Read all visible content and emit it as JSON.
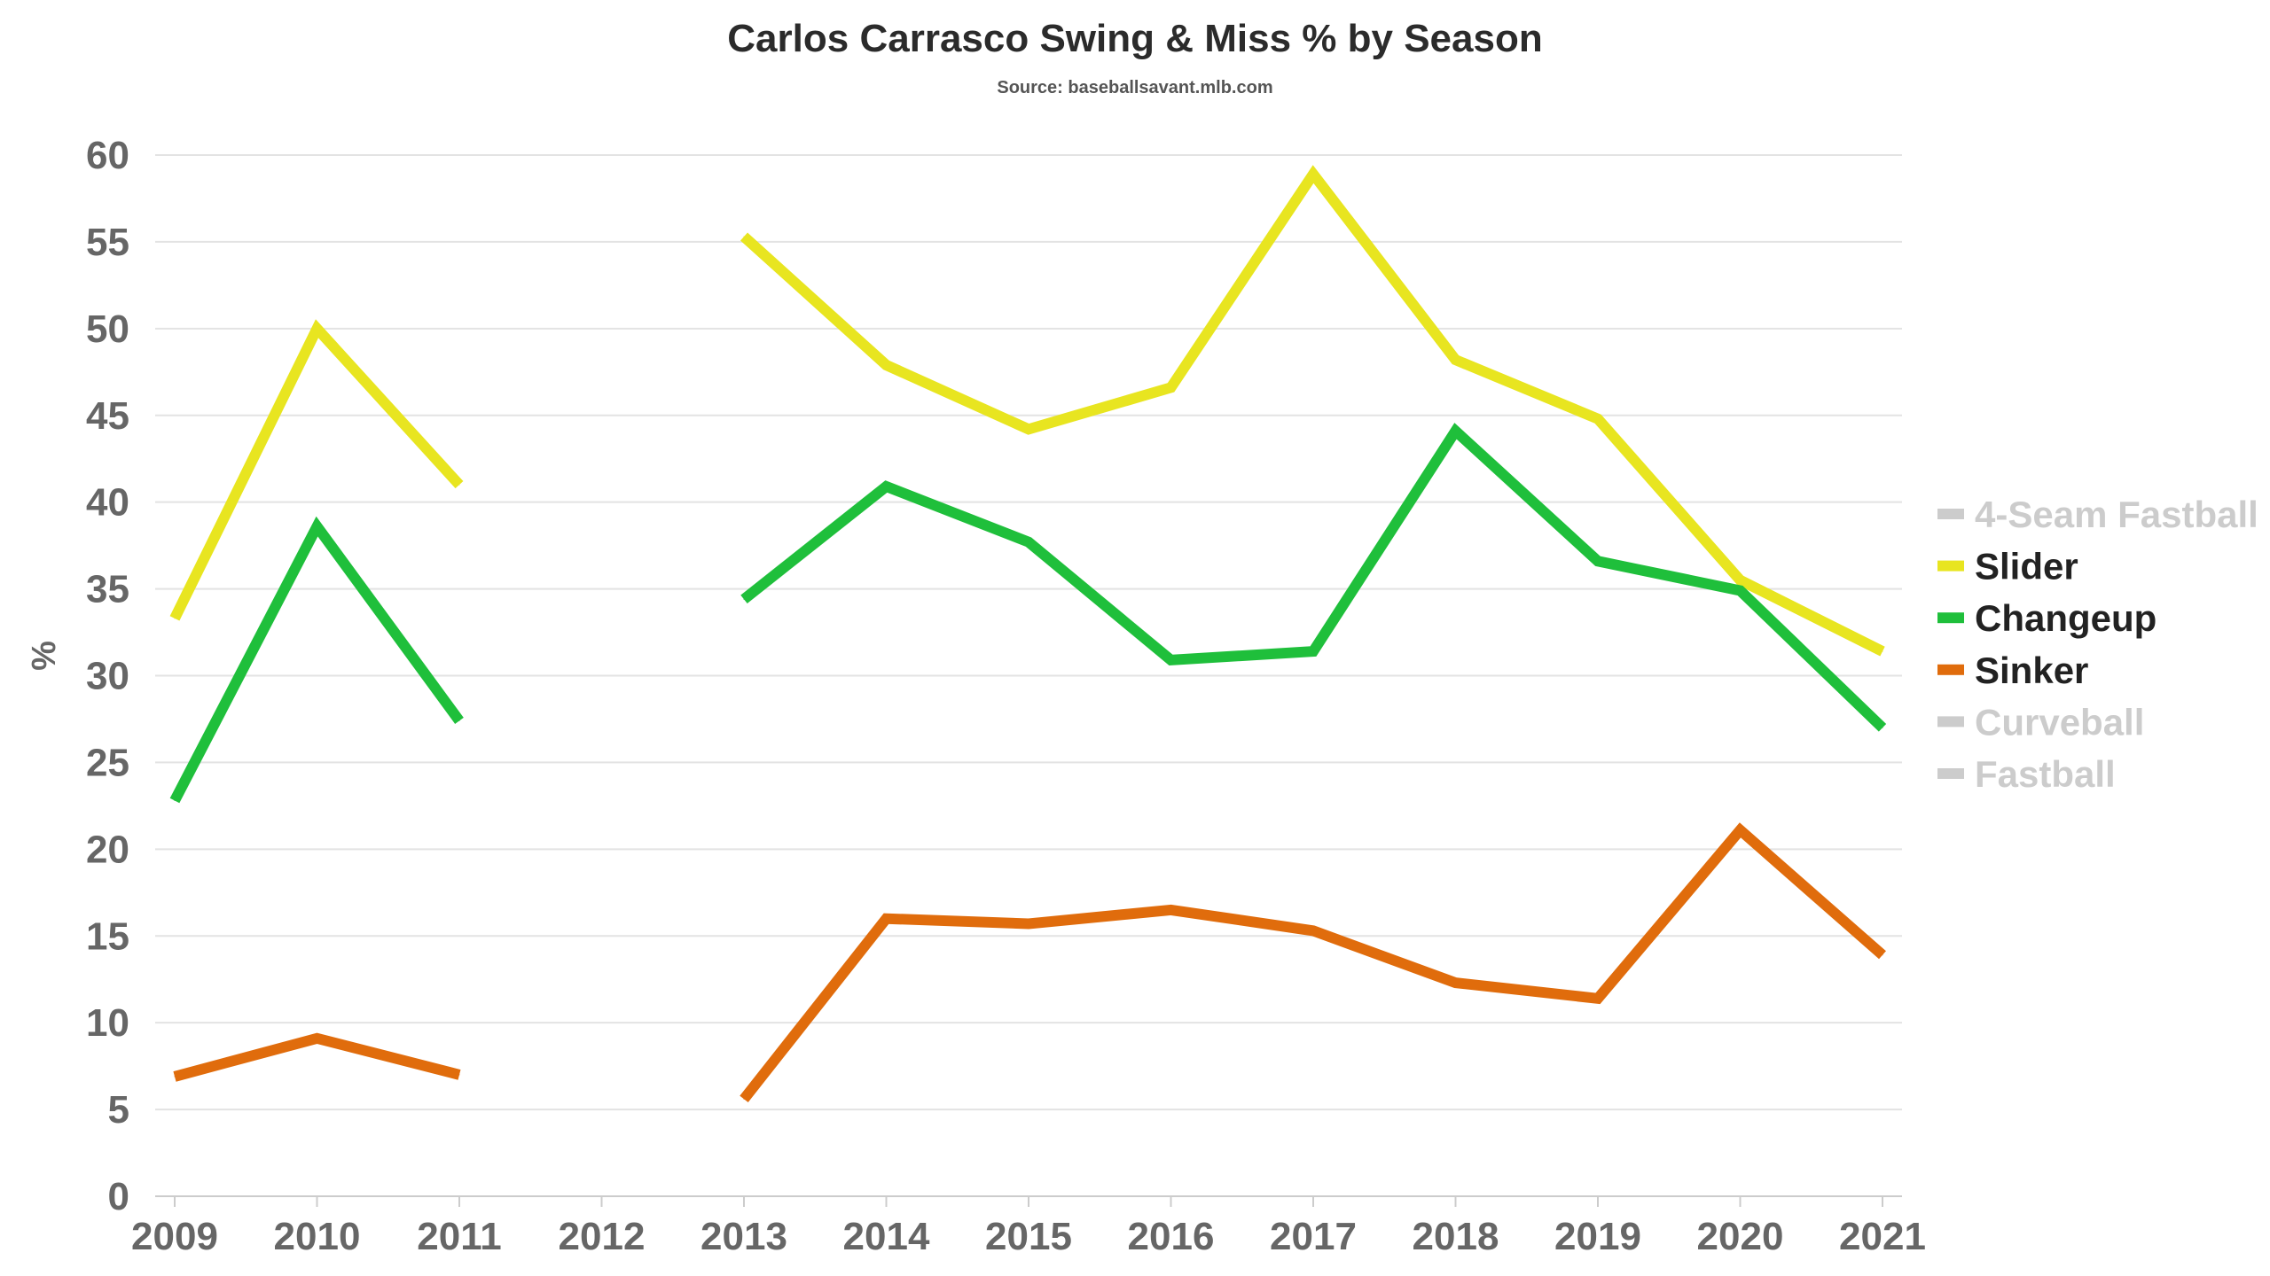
{
  "chart_data": {
    "type": "line",
    "title": "Carlos Carrasco Swing & Miss % by Season",
    "subtitle": "Source: baseballsavant.mlb.com",
    "xlabel": "",
    "ylabel": "%",
    "x": [
      "2009",
      "2010",
      "2011",
      "2012",
      "2013",
      "2014",
      "2015",
      "2016",
      "2017",
      "2018",
      "2019",
      "2020",
      "2021"
    ],
    "ylim": [
      0,
      60
    ],
    "yticks": [
      0,
      5,
      10,
      15,
      20,
      25,
      30,
      35,
      40,
      45,
      50,
      55,
      60
    ],
    "grid": true,
    "legend_position": "right",
    "series": [
      {
        "name": "4-Seam Fastball",
        "color": "#cccccc",
        "active": false,
        "values": [
          null,
          null,
          null,
          null,
          null,
          null,
          null,
          null,
          null,
          null,
          null,
          null,
          null
        ]
      },
      {
        "name": "Slider",
        "color": "#e8e520",
        "active": true,
        "values": [
          33.3,
          50.0,
          41.0,
          null,
          55.3,
          47.9,
          44.2,
          46.6,
          58.9,
          48.2,
          44.8,
          35.5,
          31.4
        ]
      },
      {
        "name": "Changeup",
        "color": "#1fbf3b",
        "active": true,
        "values": [
          22.8,
          38.6,
          27.4,
          null,
          34.4,
          40.9,
          37.7,
          30.9,
          31.4,
          44.1,
          36.6,
          34.9,
          27.0
        ]
      },
      {
        "name": "Sinker",
        "color": "#e06c0c",
        "active": true,
        "values": [
          6.9,
          9.1,
          7.0,
          null,
          5.6,
          16.0,
          15.7,
          16.5,
          15.3,
          12.3,
          11.4,
          21.1,
          13.9
        ]
      },
      {
        "name": "Curveball",
        "color": "#cccccc",
        "active": false,
        "values": [
          null,
          null,
          null,
          null,
          null,
          null,
          null,
          null,
          null,
          null,
          null,
          null,
          null
        ]
      },
      {
        "name": "Fastball",
        "color": "#cccccc",
        "active": false,
        "values": [
          null,
          null,
          null,
          null,
          null,
          null,
          null,
          null,
          null,
          null,
          null,
          null,
          null
        ]
      }
    ],
    "colors": {
      "grid": "#e3e3e3",
      "axis": "#cccccc",
      "tick_text": "#666666",
      "legend_active_text": "#222222",
      "legend_inactive_text": "#cccccc"
    }
  }
}
